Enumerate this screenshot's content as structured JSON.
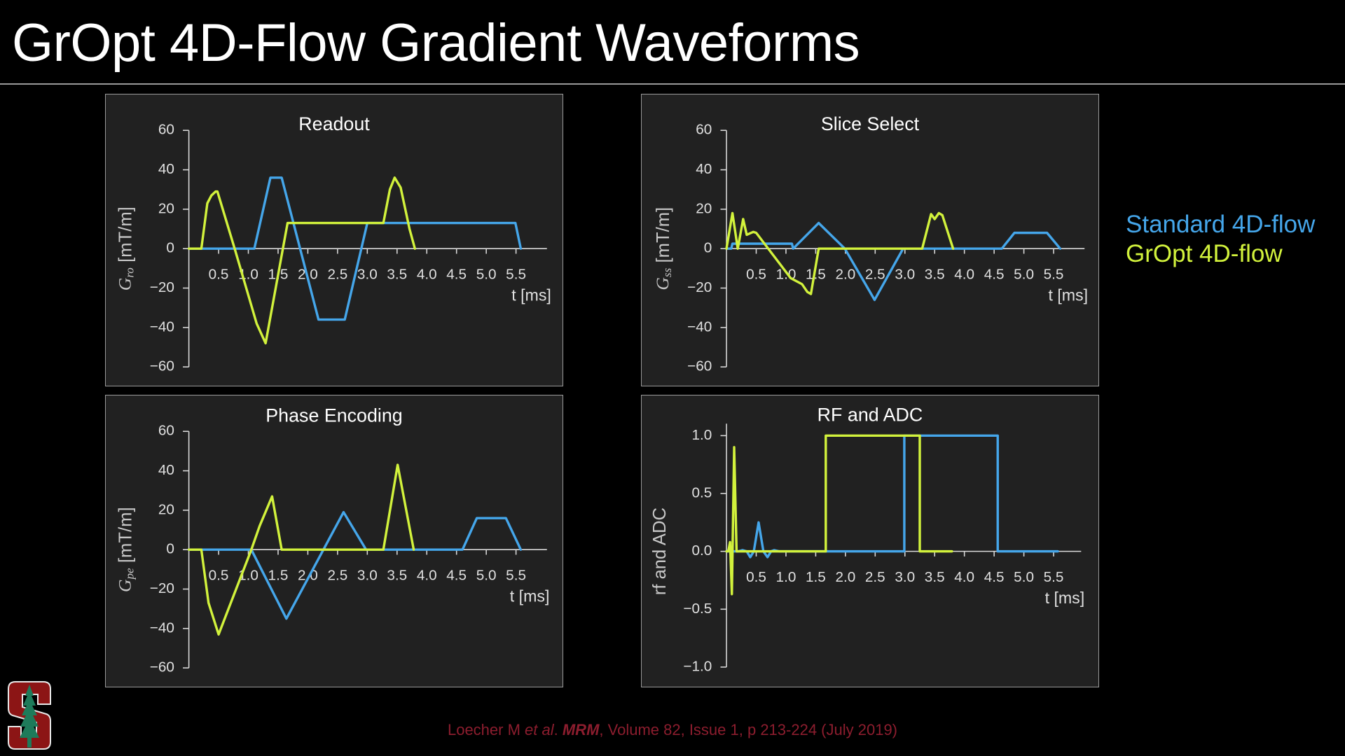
{
  "page": {
    "title": "GrOpt 4D-Flow Gradient Waveforms",
    "legend": [
      {
        "label": "Standard 4D-flow",
        "color": "#45a6ea"
      },
      {
        "label": "GrOpt 4D-flow",
        "color": "#d2f23c"
      }
    ],
    "citation": {
      "author": "Loecher M ",
      "etal": "et al",
      "dot": ". ",
      "journal": "MRM",
      "rest": ", Volume 82, Issue 1, p 213-224 (July 2019)",
      "color": "#8c1d2e"
    },
    "logo": {
      "name": "Stanford",
      "letter": "S"
    }
  },
  "chart_data": [
    {
      "type": "line",
      "title": "Readout",
      "ylabel": {
        "symbol": "G",
        "sub": "ro",
        "unit": "[mT/m]"
      },
      "xlabel": "t [ms]",
      "xlim": [
        0,
        6
      ],
      "ylim": [
        -60,
        60
      ],
      "xticks": [
        "0.5",
        "1.0",
        "1.5",
        "2.0",
        "2.5",
        "3.0",
        "3.5",
        "4.0",
        "4.5",
        "5.0",
        "5.5"
      ],
      "yticks": [
        "60",
        "40",
        "20",
        "0",
        "−20",
        "−40",
        "−60"
      ],
      "ytick_values": [
        60,
        40,
        20,
        0,
        -20,
        -40,
        -60
      ],
      "series": [
        {
          "name": "Standard 4D-flow",
          "color": "#45a6ea",
          "points": [
            [
              0,
              0
            ],
            [
              1.1,
              0
            ],
            [
              1.37,
              36
            ],
            [
              1.56,
              36
            ],
            [
              2.18,
              -36
            ],
            [
              2.62,
              -36
            ],
            [
              3.0,
              13
            ],
            [
              5.49,
              13
            ],
            [
              5.58,
              0
            ]
          ]
        },
        {
          "name": "GrOpt 4D-flow",
          "color": "#d2f23c",
          "points": [
            [
              0,
              0
            ],
            [
              0.21,
              0
            ],
            [
              0.31,
              23
            ],
            [
              0.38,
              27
            ],
            [
              0.45,
              29
            ],
            [
              0.48,
              29
            ],
            [
              0.77,
              0
            ],
            [
              1.14,
              -38
            ],
            [
              1.29,
              -48
            ],
            [
              1.66,
              13
            ],
            [
              3.27,
              13
            ],
            [
              3.38,
              30
            ],
            [
              3.46,
              36
            ],
            [
              3.52,
              33
            ],
            [
              3.56,
              31
            ],
            [
              3.71,
              10
            ],
            [
              3.8,
              0
            ]
          ]
        }
      ]
    },
    {
      "type": "line",
      "title": "Slice Select",
      "ylabel": {
        "symbol": "G",
        "sub": "ss",
        "unit": "[mT/m]"
      },
      "xlabel": "t [ms]",
      "xlim": [
        0,
        6
      ],
      "ylim": [
        -60,
        60
      ],
      "xticks": [
        "0.5",
        "1.0",
        "1.5",
        "2.0",
        "2.5",
        "3.0",
        "3.5",
        "4.0",
        "4.5",
        "5.0",
        "5.5"
      ],
      "yticks": [
        "60",
        "40",
        "20",
        "0",
        "−20",
        "−40",
        "−60"
      ],
      "ytick_values": [
        60,
        40,
        20,
        0,
        -20,
        -40,
        -60
      ],
      "series": [
        {
          "name": "Standard 4D-flow",
          "color": "#45a6ea",
          "points": [
            [
              0,
              0
            ],
            [
              0.08,
              0
            ],
            [
              0.1,
              2.5
            ],
            [
              1.1,
              2.5
            ],
            [
              1.12,
              0
            ],
            [
              1.55,
              13
            ],
            [
              1.99,
              0
            ],
            [
              2.49,
              -26
            ],
            [
              2.97,
              0
            ],
            [
              4.63,
              0
            ],
            [
              4.84,
              8
            ],
            [
              5.39,
              8
            ],
            [
              5.61,
              0
            ]
          ]
        },
        {
          "name": "GrOpt 4D-flow",
          "color": "#d2f23c",
          "points": [
            [
              0,
              0
            ],
            [
              0.1,
              18
            ],
            [
              0.19,
              0
            ],
            [
              0.28,
              15
            ],
            [
              0.34,
              7
            ],
            [
              0.45,
              8.5
            ],
            [
              0.5,
              8
            ],
            [
              1.08,
              -15
            ],
            [
              1.27,
              -18
            ],
            [
              1.36,
              -22
            ],
            [
              1.42,
              -23
            ],
            [
              1.55,
              0
            ],
            [
              3.29,
              0
            ],
            [
              3.44,
              17.5
            ],
            [
              3.5,
              15
            ],
            [
              3.57,
              18
            ],
            [
              3.63,
              17
            ],
            [
              3.81,
              0
            ]
          ]
        }
      ]
    },
    {
      "type": "line",
      "title": "Phase Encoding",
      "ylabel": {
        "symbol": "G",
        "sub": "pe",
        "unit": "[mT/m]"
      },
      "xlabel": "t [ms]",
      "xlim": [
        0,
        6
      ],
      "ylim": [
        -60,
        60
      ],
      "xticks": [
        "0.5",
        "1.0",
        "1.5",
        "2.0",
        "2.5",
        "3.0",
        "3.5",
        "4.0",
        "4.5",
        "5.0",
        "5.5"
      ],
      "yticks": [
        "60",
        "40",
        "20",
        "0",
        "−20",
        "−40",
        "−60"
      ],
      "ytick_values": [
        60,
        40,
        20,
        0,
        -20,
        -40,
        -60
      ],
      "series": [
        {
          "name": "Standard 4D-flow",
          "color": "#45a6ea",
          "points": [
            [
              0,
              0
            ],
            [
              1.05,
              0
            ],
            [
              1.64,
              -35
            ],
            [
              2.6,
              19
            ],
            [
              2.98,
              0
            ],
            [
              4.6,
              0
            ],
            [
              4.84,
              16
            ],
            [
              5.33,
              16
            ],
            [
              5.58,
              0
            ]
          ]
        },
        {
          "name": "GrOpt 4D-flow",
          "color": "#d2f23c",
          "points": [
            [
              0,
              0
            ],
            [
              0.21,
              0
            ],
            [
              0.33,
              -27
            ],
            [
              0.5,
              -43
            ],
            [
              1.05,
              0
            ],
            [
              1.19,
              12
            ],
            [
              1.4,
              27
            ],
            [
              1.56,
              0
            ],
            [
              3.27,
              0
            ],
            [
              3.51,
              43
            ],
            [
              3.78,
              0
            ]
          ]
        }
      ]
    },
    {
      "type": "line",
      "title": "RF and ADC",
      "ylabel": {
        "symbol": "rf and ADC",
        "sub": "",
        "unit": ""
      },
      "xlabel": "t [ms]",
      "xlim": [
        0,
        6
      ],
      "ylim": [
        -1,
        1
      ],
      "xticks": [
        "0.5",
        "1.0",
        "1.5",
        "2.0",
        "2.5",
        "3.0",
        "3.5",
        "4.0",
        "4.5",
        "5.0",
        "5.5"
      ],
      "yticks": [
        "1.0",
        "0.5",
        "0.0",
        "−0.5",
        "−1.0"
      ],
      "ytick_values": [
        1,
        0.5,
        0,
        -0.5,
        -1
      ],
      "series": [
        {
          "name": "Standard 4D-flow",
          "color": "#45a6ea",
          "points": [
            [
              0,
              0
            ],
            [
              0.2,
              0
            ],
            [
              0.27,
              0.01
            ],
            [
              0.34,
              0
            ],
            [
              0.4,
              -0.05
            ],
            [
              0.46,
              0
            ],
            [
              0.54,
              0.25
            ],
            [
              0.62,
              0
            ],
            [
              0.69,
              -0.05
            ],
            [
              0.75,
              0
            ],
            [
              0.8,
              0.01
            ],
            [
              0.89,
              0
            ],
            [
              2.99,
              0
            ],
            [
              2.99,
              1
            ],
            [
              4.56,
              1
            ],
            [
              4.56,
              0
            ],
            [
              5.57,
              0
            ]
          ]
        },
        {
          "name": "GrOpt 4D-flow",
          "color": "#d2f23c",
          "points": [
            [
              0,
              0
            ],
            [
              0.03,
              0
            ],
            [
              0.06,
              0.08
            ],
            [
              0.09,
              -0.37
            ],
            [
              0.13,
              0.9
            ],
            [
              0.17,
              0
            ],
            [
              1.67,
              0
            ],
            [
              1.67,
              1
            ],
            [
              3.25,
              1
            ],
            [
              3.25,
              0
            ],
            [
              3.79,
              0
            ]
          ]
        }
      ]
    }
  ]
}
